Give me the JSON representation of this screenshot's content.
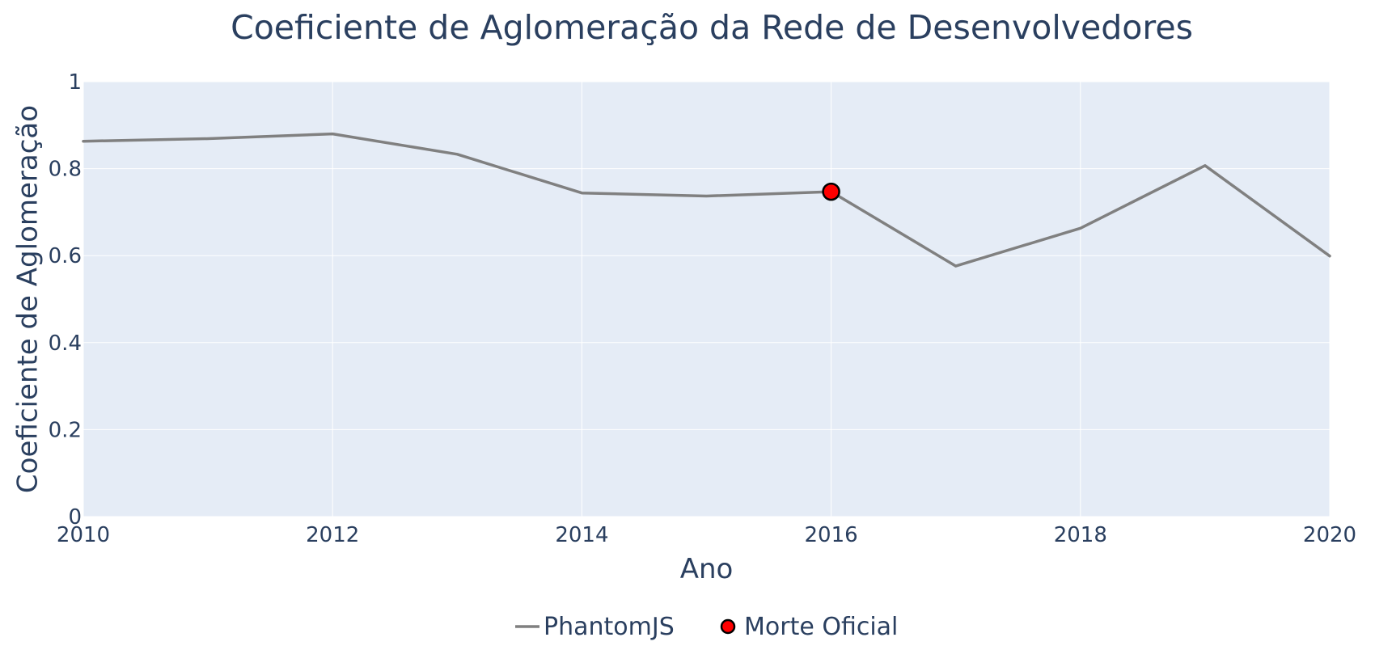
{
  "chart_data": {
    "type": "line",
    "title": "Coeficiente de Aglomeração da Rede de Desenvolvedores",
    "xlabel": "Ano",
    "ylabel": "Coeficiente de Aglomeração",
    "xlim": [
      2010,
      2020
    ],
    "ylim": [
      0,
      1
    ],
    "x_ticks": [
      2010,
      2012,
      2014,
      2016,
      2018,
      2020
    ],
    "x_tick_labels": [
      "2010",
      "2012",
      "2014",
      "2016",
      "2018",
      "2020"
    ],
    "y_ticks": [
      0,
      0.2,
      0.4,
      0.6,
      0.8,
      1
    ],
    "y_tick_labels": [
      "0",
      "0.2",
      "0.4",
      "0.6",
      "0.8",
      "1"
    ],
    "grid": true,
    "legend_position": "bottom-center",
    "series": [
      {
        "name": "PhantomJS",
        "kind": "line",
        "color": "#808080",
        "x": [
          2010,
          2011,
          2012,
          2013,
          2014,
          2015,
          2016,
          2017,
          2018,
          2019,
          2020
        ],
        "y": [
          0.863,
          0.869,
          0.88,
          0.833,
          0.744,
          0.737,
          0.747,
          0.576,
          0.663,
          0.807,
          0.599
        ]
      },
      {
        "name": "Morte Oficial",
        "kind": "marker",
        "color": "#ff0000",
        "edge_color": "#000000",
        "x": [
          2016
        ],
        "y": [
          0.747
        ]
      }
    ]
  },
  "colors": {
    "plot_background": "#e5ecf6",
    "gridline": "#ffffff",
    "text": "#2a3f5f"
  }
}
